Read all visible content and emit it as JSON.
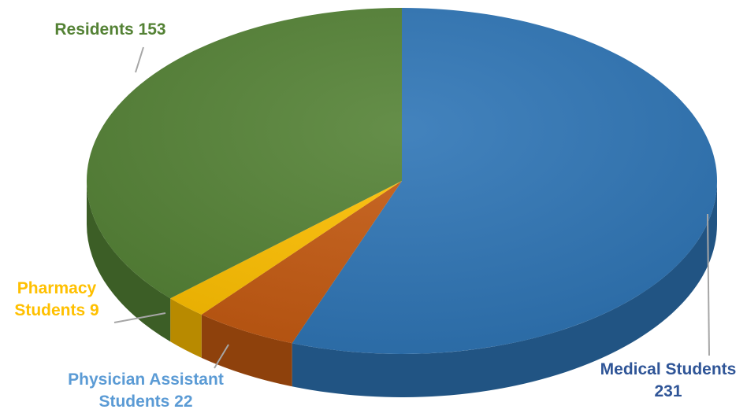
{
  "chart_data": {
    "type": "pie",
    "style": "3d-exploded-none",
    "title": "",
    "legend": "none",
    "slices": [
      {
        "category": "Medical Students",
        "value": 231,
        "color": "#2e75b6",
        "label_lines": [
          "Medical Students",
          "231"
        ],
        "label_color": "#2f5597"
      },
      {
        "category": "Physician Assistant Students",
        "value": 22,
        "color": "#c55a11",
        "label_lines": [
          "Physician Assistant",
          "Students 22"
        ],
        "label_color": "#5b9bd5"
      },
      {
        "category": "Pharmacy Students",
        "value": 9,
        "color": "#ffc000",
        "label_lines": [
          "Pharmacy",
          "Students 9"
        ],
        "label_color": "#ffc000"
      },
      {
        "category": "Residents",
        "value": 153,
        "color": "#548235",
        "label_lines": [
          "Residents 153"
        ],
        "label_color": "#548235"
      }
    ]
  }
}
